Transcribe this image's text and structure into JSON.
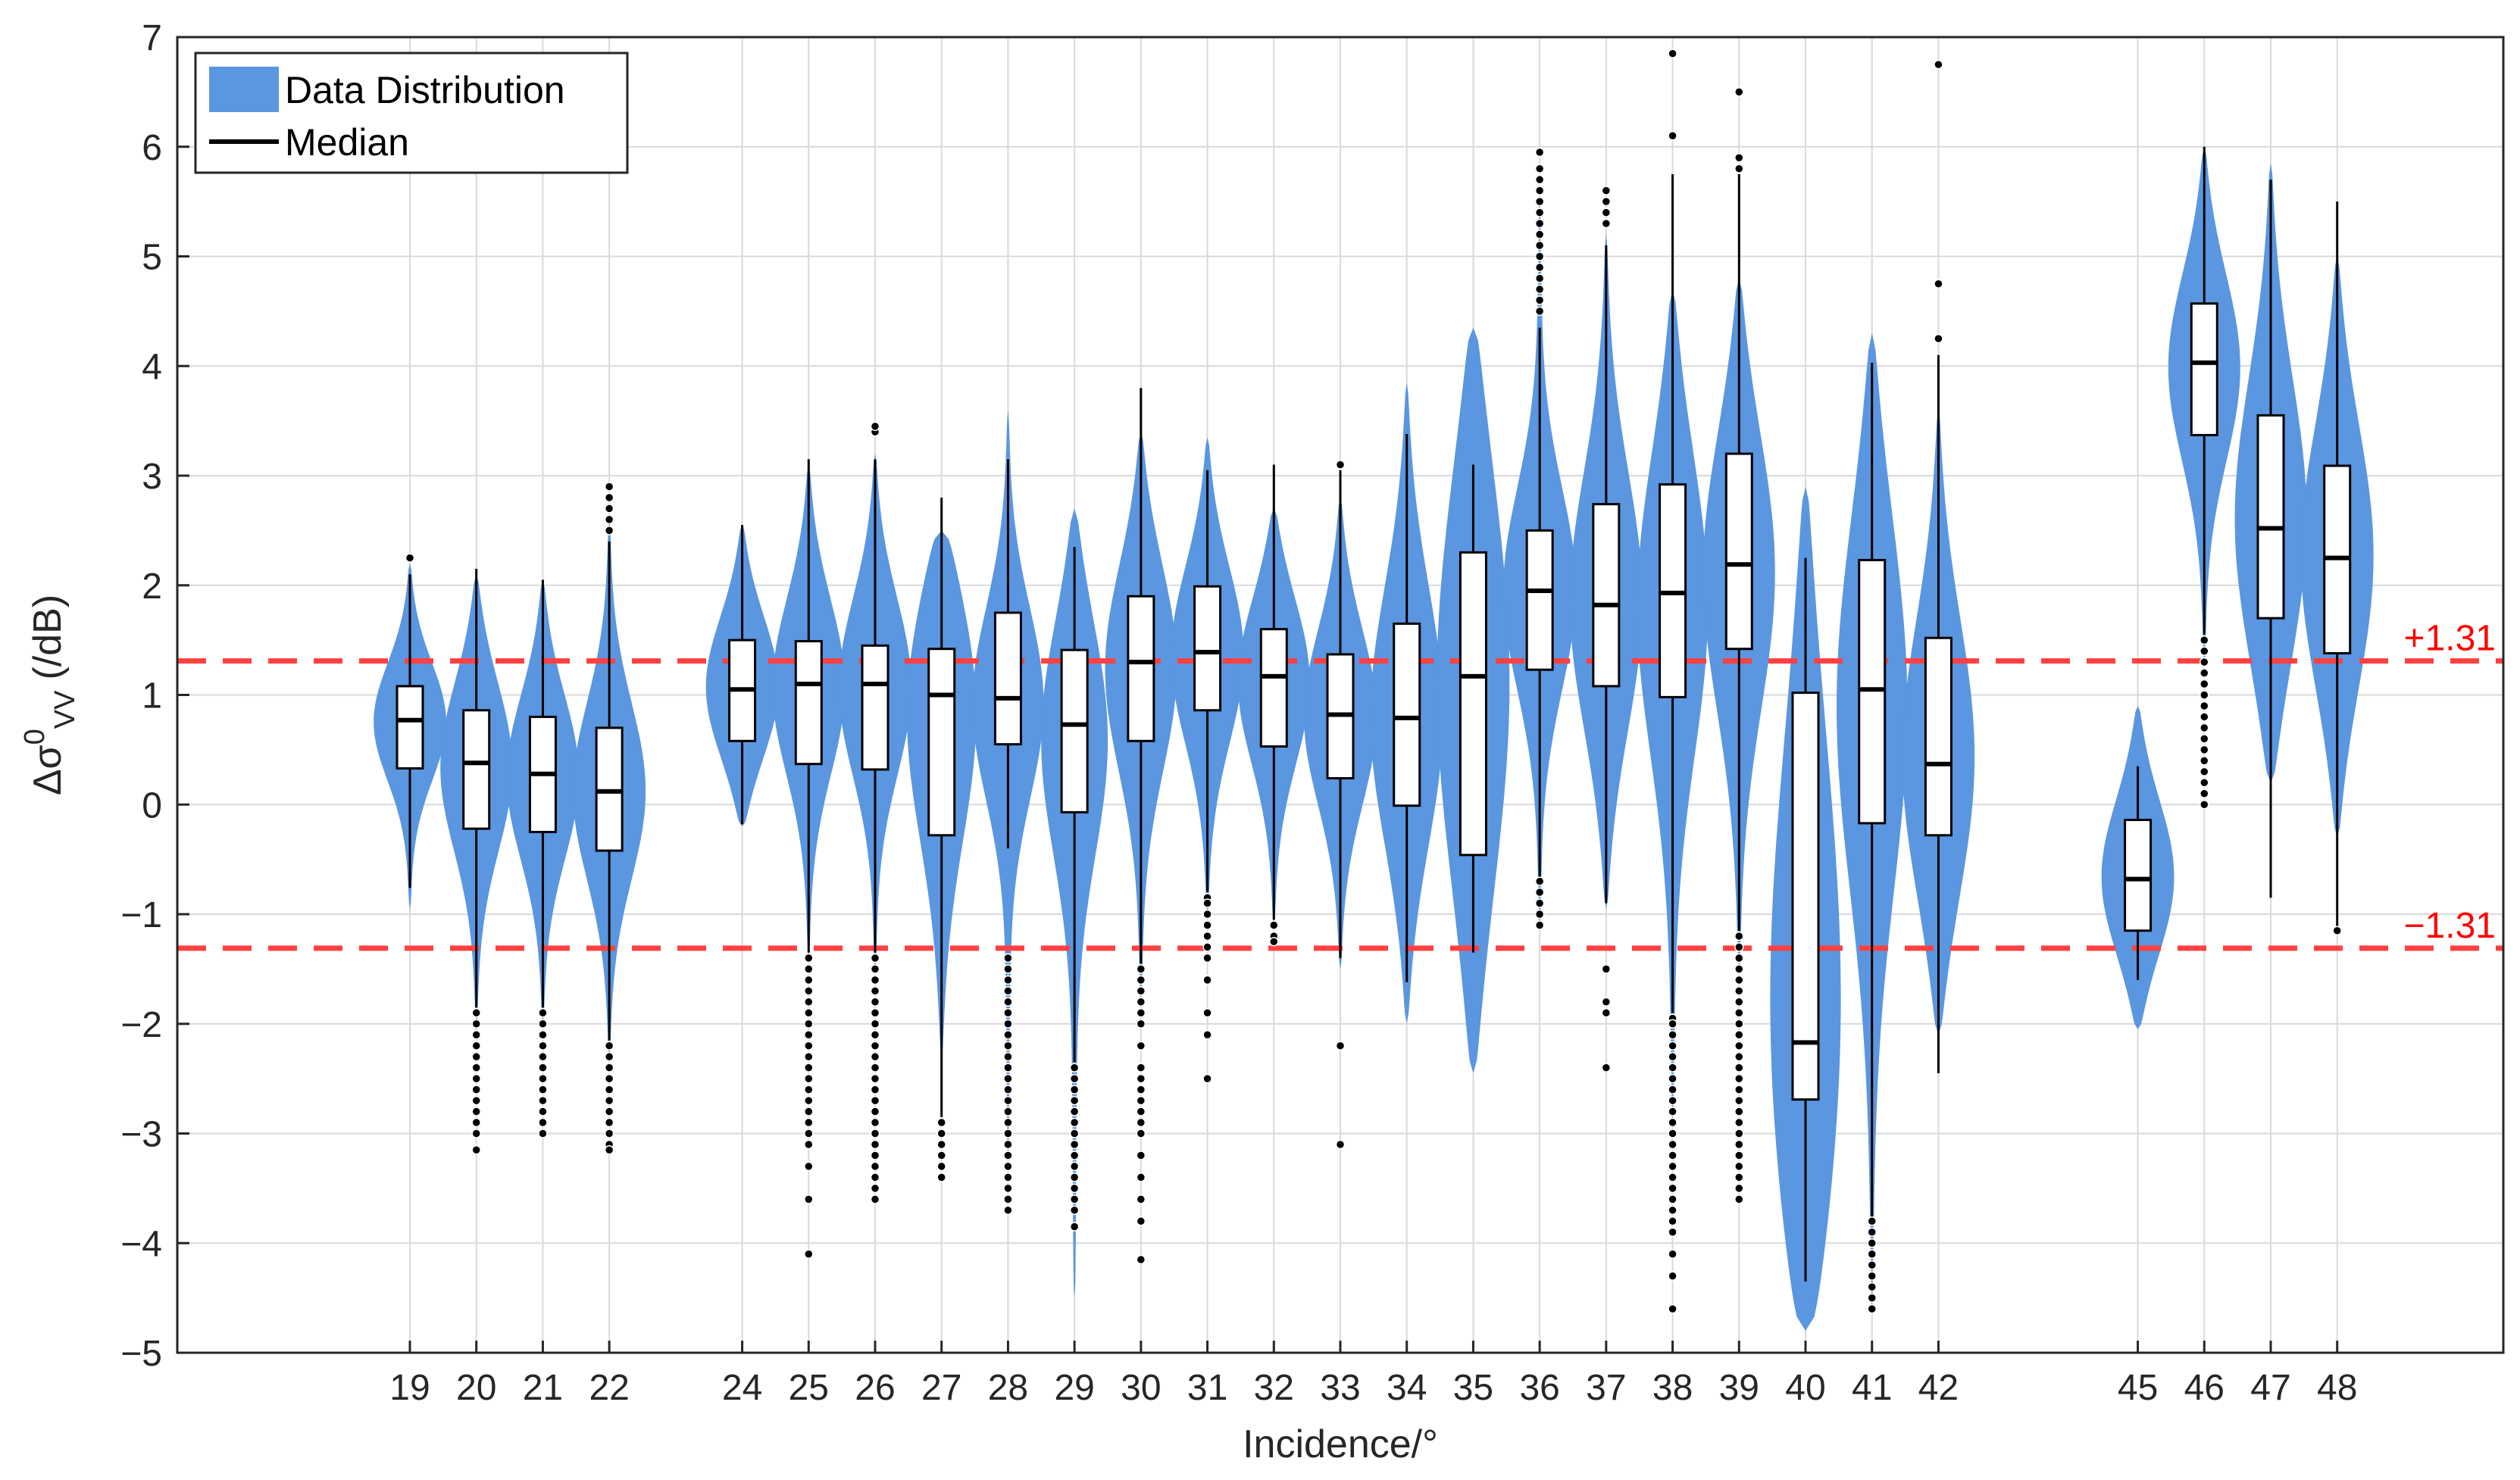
{
  "chart_data": {
    "type": "violin",
    "title": "",
    "xlabel": "Incidence/°",
    "ylabel": {
      "base": "Δσ",
      "superscript": "0",
      "subscript": "VV",
      "unit": "(/dB)"
    },
    "xlim": [
      15.5,
      50.5
    ],
    "ylim": [
      -5,
      7
    ],
    "x_ticks": [
      19,
      20,
      21,
      22,
      24,
      25,
      26,
      27,
      28,
      29,
      30,
      31,
      32,
      33,
      34,
      35,
      36,
      37,
      38,
      39,
      40,
      41,
      42,
      45,
      46,
      47,
      48
    ],
    "y_ticks": [
      -5,
      -4,
      -3,
      -2,
      -1,
      0,
      1,
      2,
      3,
      4,
      5,
      6,
      7
    ],
    "y_tick_labels": [
      "−5",
      "−4",
      "−3",
      "−2",
      "−1",
      "0",
      "1",
      "2",
      "3",
      "4",
      "5",
      "6",
      "7"
    ],
    "grid": true,
    "legend": {
      "position": "top-left",
      "entries": [
        {
          "label": "Data Distribution",
          "kind": "patch"
        },
        {
          "label": "Median",
          "kind": "line"
        }
      ]
    },
    "reference_lines": [
      {
        "value": 1.31,
        "label": "+1.31"
      },
      {
        "value": -1.31,
        "label": "−1.31"
      }
    ],
    "series": [
      {
        "x": 19,
        "q1": 0.33,
        "median": 0.77,
        "q3": 1.08,
        "whisker_low": -0.76,
        "whisker_high": 2.1,
        "violin_low": -0.95,
        "violin_high": 2.2,
        "outliers": [
          2.25
        ]
      },
      {
        "x": 20,
        "q1": -0.22,
        "median": 0.38,
        "q3": 0.86,
        "whisker_low": -1.85,
        "whisker_high": 2.15,
        "violin_low": -2.0,
        "violin_high": 2.1,
        "outliers": [
          -1.9,
          -2.0,
          -2.1,
          -2.2,
          -2.3,
          -2.4,
          -2.5,
          -2.6,
          -2.7,
          -2.8,
          -2.9,
          -3.0,
          -3.15
        ]
      },
      {
        "x": 21,
        "q1": -0.25,
        "median": 0.28,
        "q3": 0.8,
        "whisker_low": -1.85,
        "whisker_high": 2.05,
        "violin_low": -2.0,
        "violin_high": 2.05,
        "outliers": [
          -1.9,
          -2.0,
          -2.1,
          -2.2,
          -2.3,
          -2.4,
          -2.5,
          -2.6,
          -2.7,
          -2.8,
          -2.9,
          -3.0
        ]
      },
      {
        "x": 22,
        "q1": -0.42,
        "median": 0.12,
        "q3": 0.7,
        "whisker_low": -2.15,
        "whisker_high": 2.4,
        "violin_low": -2.3,
        "violin_high": 2.6,
        "outliers": [
          2.5,
          2.6,
          2.7,
          2.8,
          2.9,
          -2.2,
          -2.3,
          -2.4,
          -2.5,
          -2.6,
          -2.7,
          -2.8,
          -2.9,
          -3.0,
          -3.1,
          -3.15
        ]
      },
      {
        "x": 24,
        "q1": 0.58,
        "median": 1.05,
        "q3": 1.5,
        "whisker_low": -0.18,
        "whisker_high": 2.55,
        "violin_low": -0.2,
        "violin_high": 2.55,
        "outliers": []
      },
      {
        "x": 25,
        "q1": 0.37,
        "median": 1.1,
        "q3": 1.49,
        "whisker_low": -1.35,
        "whisker_high": 3.15,
        "violin_low": -1.4,
        "violin_high": 3.1,
        "outliers": [
          -1.4,
          -1.5,
          -1.6,
          -1.7,
          -1.8,
          -1.9,
          -2.0,
          -2.1,
          -2.2,
          -2.3,
          -2.4,
          -2.5,
          -2.6,
          -2.7,
          -2.8,
          -2.9,
          -3.0,
          -3.1,
          -3.3,
          -3.6,
          -4.1
        ]
      },
      {
        "x": 26,
        "q1": 0.32,
        "median": 1.1,
        "q3": 1.45,
        "whisker_low": -1.35,
        "whisker_high": 3.15,
        "violin_low": -1.5,
        "violin_high": 3.2,
        "outliers": [
          3.4,
          3.45,
          -1.4,
          -1.5,
          -1.6,
          -1.7,
          -1.8,
          -1.9,
          -2.0,
          -2.1,
          -2.2,
          -2.3,
          -2.4,
          -2.5,
          -2.6,
          -2.7,
          -2.8,
          -2.9,
          -3.0,
          -3.1,
          -3.2,
          -3.3,
          -3.4,
          -3.5,
          -3.6
        ]
      },
      {
        "x": 27,
        "q1": -0.28,
        "median": 1.0,
        "q3": 1.42,
        "whisker_low": -2.85,
        "whisker_high": 2.8,
        "violin_low": -2.3,
        "violin_high": 2.5,
        "outliers": [
          -2.9,
          -3.0,
          -3.1,
          -3.2,
          -3.3,
          -3.4
        ]
      },
      {
        "x": 28,
        "q1": 0.55,
        "median": 0.97,
        "q3": 1.75,
        "whisker_low": -0.4,
        "whisker_high": 3.15,
        "violin_low": -3.2,
        "violin_high": 3.6,
        "outliers": [
          -1.4,
          -1.5,
          -1.6,
          -1.7,
          -1.8,
          -1.9,
          -2.0,
          -2.1,
          -2.2,
          -2.3,
          -2.4,
          -2.5,
          -2.6,
          -2.7,
          -2.8,
          -2.9,
          -3.0,
          -3.1,
          -3.2,
          -3.3,
          -3.4,
          -3.5,
          -3.6,
          -3.7
        ]
      },
      {
        "x": 29,
        "q1": -0.07,
        "median": 0.73,
        "q3": 1.41,
        "whisker_low": -2.35,
        "whisker_high": 2.35,
        "violin_low": -4.5,
        "violin_high": 2.7,
        "outliers": [
          -2.4,
          -2.5,
          -2.6,
          -2.7,
          -2.8,
          -2.9,
          -3.0,
          -3.1,
          -3.2,
          -3.3,
          -3.4,
          -3.5,
          -3.6,
          -3.7,
          -3.85
        ]
      },
      {
        "x": 30,
        "q1": 0.58,
        "median": 1.3,
        "q3": 1.9,
        "whisker_low": -1.45,
        "whisker_high": 3.8,
        "violin_low": -1.8,
        "violin_high": 3.4,
        "outliers": [
          -1.5,
          -1.6,
          -1.7,
          -1.8,
          -1.9,
          -2.0,
          -2.2,
          -2.4,
          -2.5,
          -2.6,
          -2.7,
          -2.8,
          -2.9,
          -3.0,
          -3.2,
          -3.4,
          -3.6,
          -3.8,
          -4.15
        ]
      },
      {
        "x": 31,
        "q1": 0.86,
        "median": 1.39,
        "q3": 1.99,
        "whisker_low": -0.8,
        "whisker_high": 3.05,
        "violin_low": -1.0,
        "violin_high": 3.35,
        "outliers": [
          -0.85,
          -0.9,
          -1.0,
          -1.1,
          -1.2,
          -1.3,
          -1.4,
          -1.6,
          -1.9,
          -2.1,
          -2.5
        ]
      },
      {
        "x": 32,
        "q1": 0.53,
        "median": 1.17,
        "q3": 1.6,
        "whisker_low": -1.05,
        "whisker_high": 3.1,
        "violin_low": -1.1,
        "violin_high": 2.7,
        "outliers": [
          -1.1,
          -1.2,
          -1.25
        ]
      },
      {
        "x": 33,
        "q1": 0.24,
        "median": 0.82,
        "q3": 1.37,
        "whisker_low": -1.4,
        "whisker_high": 3.05,
        "violin_low": -1.5,
        "violin_high": 2.8,
        "outliers": [
          3.1,
          -2.2,
          -3.1
        ]
      },
      {
        "x": 34,
        "q1": -0.01,
        "median": 0.79,
        "q3": 1.65,
        "whisker_low": -1.62,
        "whisker_high": 3.38,
        "violin_low": -2.0,
        "violin_high": 3.85,
        "outliers": []
      },
      {
        "x": 35,
        "q1": -0.46,
        "median": 1.17,
        "q3": 2.3,
        "whisker_low": -1.35,
        "whisker_high": 3.1,
        "violin_low": -2.45,
        "violin_high": 4.35,
        "outliers": []
      },
      {
        "x": 36,
        "q1": 1.23,
        "median": 1.95,
        "q3": 2.5,
        "whisker_low": -0.7,
        "whisker_high": 4.35,
        "violin_low": -1.15,
        "violin_high": 5.5,
        "outliers": [
          4.5,
          4.6,
          4.7,
          4.8,
          4.9,
          5.0,
          5.1,
          5.2,
          5.3,
          5.4,
          5.5,
          5.6,
          5.7,
          5.8,
          5.95,
          -0.7,
          -0.8,
          -0.9,
          -1.0,
          -1.1
        ]
      },
      {
        "x": 37,
        "q1": 1.08,
        "median": 1.82,
        "q3": 2.74,
        "whisker_low": -0.9,
        "whisker_high": 5.1,
        "violin_low": -0.95,
        "violin_high": 5.2,
        "outliers": [
          5.3,
          5.4,
          5.5,
          5.6,
          -1.5,
          -1.8,
          -1.9,
          -2.4
        ]
      },
      {
        "x": 38,
        "q1": 0.98,
        "median": 1.93,
        "q3": 2.92,
        "whisker_low": -1.9,
        "whisker_high": 5.75,
        "violin_low": -2.9,
        "violin_high": 4.7,
        "outliers": [
          6.1,
          6.85,
          -1.95,
          -2.0,
          -2.1,
          -2.2,
          -2.3,
          -2.4,
          -2.5,
          -2.6,
          -2.7,
          -2.8,
          -2.9,
          -3.0,
          -3.1,
          -3.2,
          -3.3,
          -3.4,
          -3.5,
          -3.6,
          -3.7,
          -3.8,
          -3.9,
          -4.1,
          -4.3,
          -4.6
        ]
      },
      {
        "x": 39,
        "q1": 1.42,
        "median": 2.19,
        "q3": 3.2,
        "whisker_low": -1.15,
        "whisker_high": 5.75,
        "violin_low": -1.5,
        "violin_high": 4.8,
        "outliers": [
          5.8,
          5.9,
          6.5,
          -1.2,
          -1.3,
          -1.4,
          -1.5,
          -1.6,
          -1.7,
          -1.8,
          -1.9,
          -2.0,
          -2.1,
          -2.2,
          -2.3,
          -2.4,
          -2.5,
          -2.6,
          -2.7,
          -2.8,
          -2.9,
          -3.0,
          -3.1,
          -3.2,
          -3.3,
          -3.4,
          -3.5,
          -3.6
        ]
      },
      {
        "x": 40,
        "q1": -2.69,
        "median": -2.17,
        "q3": 1.02,
        "whisker_low": -4.35,
        "whisker_high": 2.25,
        "violin_low": -4.8,
        "violin_high": 2.9,
        "outliers": []
      },
      {
        "x": 41,
        "q1": -0.17,
        "median": 1.05,
        "q3": 2.23,
        "whisker_low": -3.8,
        "whisker_high": 4.03,
        "violin_low": -4.6,
        "violin_high": 4.3,
        "outliers": [
          -3.8,
          -3.9,
          -4.0,
          -4.1,
          -4.2,
          -4.3,
          -4.4,
          -4.5,
          -4.6
        ]
      },
      {
        "x": 42,
        "q1": -0.28,
        "median": 0.37,
        "q3": 1.52,
        "whisker_low": -2.45,
        "whisker_high": 4.1,
        "violin_low": -2.1,
        "violin_high": 3.6,
        "outliers": [
          4.25,
          4.75,
          6.75
        ]
      },
      {
        "x": 45,
        "q1": -1.15,
        "median": -0.68,
        "q3": -0.14,
        "whisker_low": -1.6,
        "whisker_high": 0.35,
        "violin_low": -2.05,
        "violin_high": 0.9,
        "outliers": []
      },
      {
        "x": 46,
        "q1": 3.37,
        "median": 4.03,
        "q3": 4.57,
        "whisker_low": 1.55,
        "whisker_high": 6.0,
        "violin_low": 1.3,
        "violin_high": 6.0,
        "outliers": [
          1.5,
          1.4,
          1.3,
          1.2,
          1.1,
          1.0,
          0.9,
          0.8,
          0.7,
          0.6,
          0.5,
          0.4,
          0.3,
          0.2,
          0.1,
          0.0
        ]
      },
      {
        "x": 47,
        "q1": 1.7,
        "median": 2.52,
        "q3": 3.55,
        "whisker_low": -0.85,
        "whisker_high": 5.7,
        "violin_low": 0.2,
        "violin_high": 5.85,
        "outliers": []
      },
      {
        "x": 48,
        "q1": 1.38,
        "median": 2.25,
        "q3": 3.09,
        "whisker_low": -1.15,
        "whisker_high": 5.5,
        "violin_low": -0.3,
        "violin_high": 5.0,
        "outliers": [
          -1.15
        ]
      }
    ]
  },
  "colors": {
    "violin": "#5b96e0",
    "box_fill": "#ffffff",
    "box_stroke": "#000000",
    "median": "#000000",
    "reference_line": "#ff4040",
    "reference_label": "#ff0000",
    "grid": "#d9d9d9",
    "axis": "#262626"
  }
}
